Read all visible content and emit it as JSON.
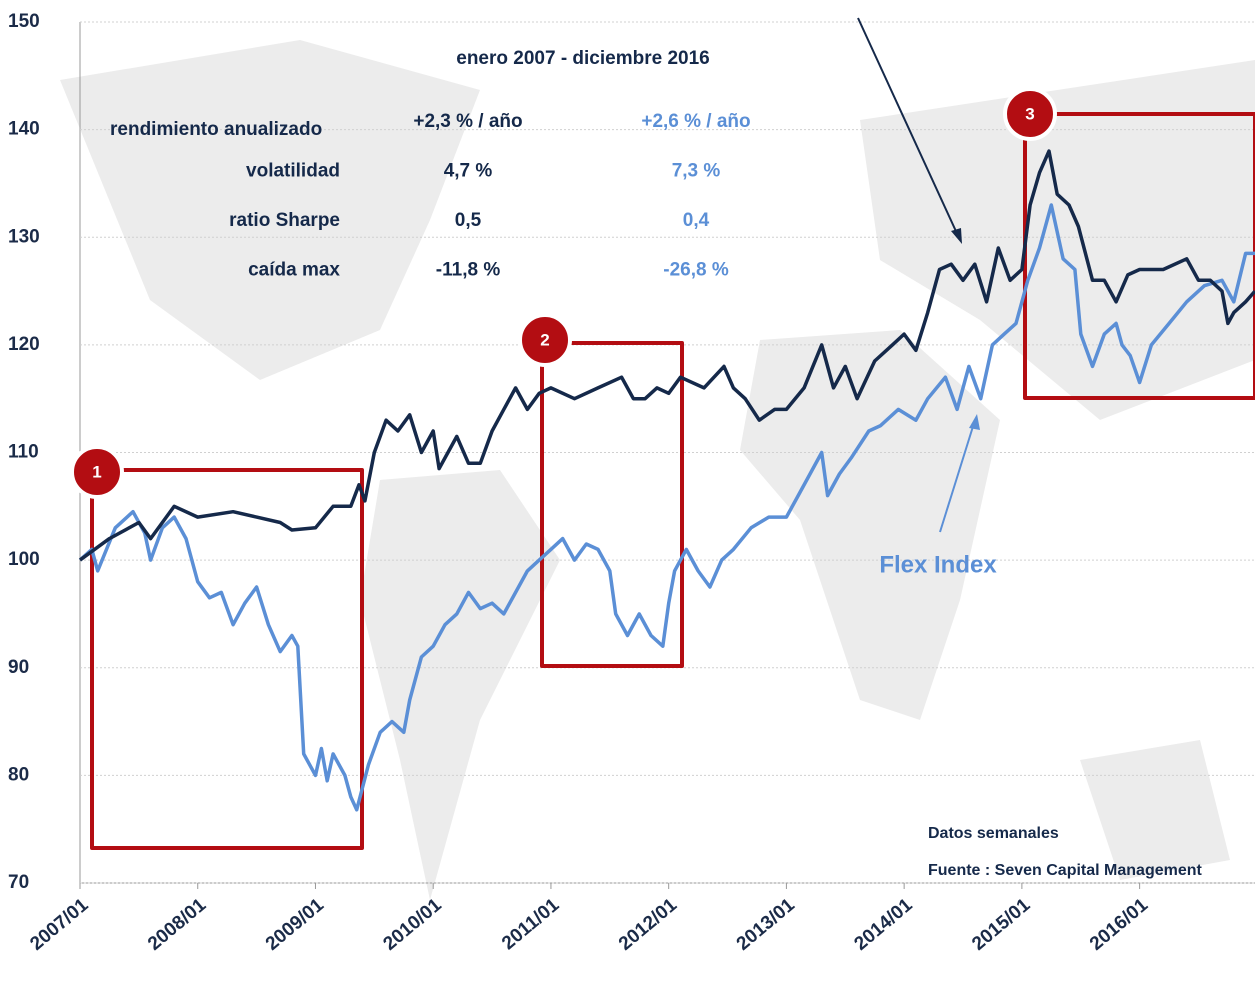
{
  "chart_data": {
    "type": "line",
    "xlim": [
      2007,
      2016.98
    ],
    "xticks": [
      {
        "value": 2007,
        "label": "2007/01"
      },
      {
        "value": 2008,
        "label": "2008/01"
      },
      {
        "value": 2009,
        "label": "2009/01"
      },
      {
        "value": 2010,
        "label": "2010/01"
      },
      {
        "value": 2011,
        "label": "2011/01"
      },
      {
        "value": 2012,
        "label": "2012/01"
      },
      {
        "value": 2013,
        "label": "2013/01"
      },
      {
        "value": 2014,
        "label": "2014/01"
      },
      {
        "value": 2015,
        "label": "2015/01"
      },
      {
        "value": 2016,
        "label": "2016/01"
      }
    ],
    "ylim": [
      70,
      150
    ],
    "yticks": [
      70,
      80,
      90,
      100,
      110,
      120,
      130,
      140,
      150
    ],
    "series": [
      {
        "color": "#15294a",
        "x": [
          2007,
          2007.25,
          2007.5,
          2007.6,
          2007.8,
          2008,
          2008.3,
          2008.5,
          2008.7,
          2008.8,
          2009,
          2009.15,
          2009.3,
          2009.37,
          2009.42,
          2009.5,
          2009.6,
          2009.7,
          2009.8,
          2009.9,
          2010,
          2010.05,
          2010.2,
          2010.3,
          2010.4,
          2010.5,
          2010.6,
          2010.7,
          2010.8,
          2010.9,
          2011,
          2011.2,
          2011.4,
          2011.6,
          2011.7,
          2011.8,
          2011.9,
          2012,
          2012.1,
          2012.3,
          2012.47,
          2012.55,
          2012.65,
          2012.77,
          2012.9,
          2013,
          2013.15,
          2013.3,
          2013.4,
          2013.5,
          2013.6,
          2013.75,
          2013.9,
          2014,
          2014.1,
          2014.2,
          2014.3,
          2014.4,
          2014.5,
          2014.6,
          2014.7,
          2014.8,
          2014.9,
          2015,
          2015.07,
          2015.15,
          2015.23,
          2015.3,
          2015.4,
          2015.48,
          2015.6,
          2015.7,
          2015.8,
          2015.9,
          2016,
          2016.2,
          2016.4,
          2016.5,
          2016.6,
          2016.7,
          2016.75,
          2016.8,
          2016.9,
          2016.98
        ],
        "values": [
          100,
          102,
          103.5,
          102,
          105,
          104,
          104.5,
          104,
          103.5,
          102.8,
          103,
          105,
          105,
          107,
          105.5,
          110,
          113,
          112,
          113.5,
          110,
          112,
          108.5,
          111.5,
          109,
          109,
          112,
          114,
          116,
          114,
          115.5,
          116,
          115,
          116,
          117,
          115,
          115,
          116,
          115.5,
          117,
          116,
          118,
          116,
          115,
          113,
          114,
          114,
          116,
          120,
          116,
          118,
          115,
          118.5,
          120,
          121,
          119.5,
          123,
          127,
          127.5,
          126,
          127.5,
          124,
          129,
          126,
          127,
          133,
          136,
          138,
          134,
          133,
          131,
          126,
          126,
          124,
          126.5,
          127,
          127,
          128,
          126,
          126,
          125,
          122,
          123,
          124,
          125
        ]
      },
      {
        "name": "Flex Index",
        "color": "#5b8fd6",
        "x": [
          2007,
          2007.1,
          2007.15,
          2007.3,
          2007.45,
          2007.55,
          2007.6,
          2007.7,
          2007.8,
          2007.9,
          2008,
          2008.1,
          2008.2,
          2008.3,
          2008.4,
          2008.5,
          2008.6,
          2008.7,
          2008.8,
          2008.85,
          2008.9,
          2009,
          2009.05,
          2009.1,
          2009.15,
          2009.25,
          2009.3,
          2009.35,
          2009.45,
          2009.55,
          2009.65,
          2009.75,
          2009.8,
          2009.9,
          2010,
          2010.1,
          2010.2,
          2010.3,
          2010.4,
          2010.5,
          2010.6,
          2010.7,
          2010.8,
          2010.9,
          2011,
          2011.1,
          2011.2,
          2011.3,
          2011.4,
          2011.5,
          2011.55,
          2011.65,
          2011.75,
          2011.85,
          2011.95,
          2012,
          2012.05,
          2012.15,
          2012.25,
          2012.35,
          2012.45,
          2012.55,
          2012.7,
          2012.85,
          2013,
          2013.1,
          2013.2,
          2013.3,
          2013.35,
          2013.45,
          2013.55,
          2013.7,
          2013.8,
          2013.95,
          2014.1,
          2014.2,
          2014.35,
          2014.45,
          2014.55,
          2014.65,
          2014.75,
          2014.85,
          2014.95,
          2015.05,
          2015.15,
          2015.25,
          2015.35,
          2015.45,
          2015.5,
          2015.6,
          2015.7,
          2015.8,
          2015.85,
          2015.92,
          2016,
          2016.1,
          2016.25,
          2016.4,
          2016.55,
          2016.7,
          2016.8,
          2016.9,
          2016.98
        ],
        "values": [
          100,
          101,
          99,
          103,
          104.5,
          102.5,
          100,
          103,
          104,
          102,
          98,
          96.5,
          97,
          94,
          96,
          97.5,
          94,
          91.5,
          93,
          92,
          82,
          80,
          82.5,
          79.5,
          82,
          80,
          78,
          76.8,
          81,
          84,
          85,
          84,
          87,
          91,
          92,
          94,
          95,
          97,
          95.5,
          96,
          95,
          97,
          99,
          100,
          101,
          102,
          100,
          101.5,
          101,
          99,
          95,
          93,
          95,
          93,
          92,
          96,
          99,
          101,
          99,
          97.5,
          100,
          101,
          103,
          104,
          104,
          106,
          108,
          110,
          106,
          108,
          109.5,
          112,
          112.5,
          114,
          113,
          115,
          117,
          114,
          118,
          115,
          120,
          121,
          122,
          126,
          129,
          133,
          128,
          127,
          121,
          118,
          121,
          122,
          120,
          119,
          116.5,
          120,
          122,
          124,
          125.5,
          126,
          124,
          128.5,
          128.5
        ]
      }
    ],
    "stats": {
      "title": "enero 2007 - diciembre 2016",
      "rows": [
        [
          "rendimiento anualizado",
          "+2,3 % / año",
          "+2,6 % / año"
        ],
        [
          "volatilidad",
          "4,7 %",
          "7,3 %"
        ],
        [
          "ratio Sharpe",
          "0,5",
          "0,4"
        ],
        [
          "caída max",
          "-11,8 %",
          "-26,8 %"
        ]
      ]
    },
    "annotations": [
      "1",
      "2",
      "3"
    ],
    "notes": [
      "Datos semanales",
      "Fuente : Seven Capital Management"
    ]
  }
}
